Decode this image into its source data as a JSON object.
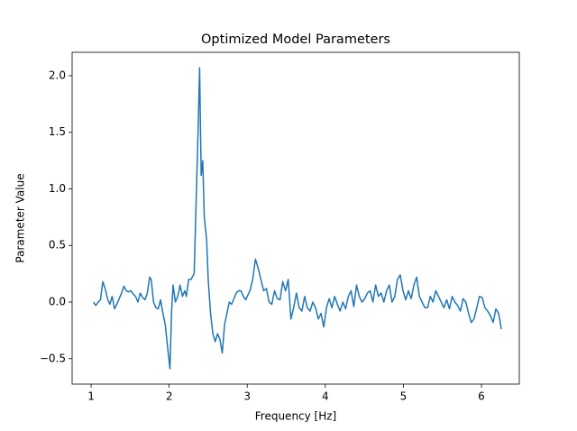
{
  "chart_data": {
    "type": "line",
    "title": "Optimized Model Parameters",
    "x_label": "Frequency [Hz]",
    "y_label": "Parameter Value",
    "color": "#1f77b4",
    "x": [
      1.03,
      1.06,
      1.09,
      1.12,
      1.15,
      1.18,
      1.21,
      1.24,
      1.27,
      1.3,
      1.33,
      1.36,
      1.39,
      1.42,
      1.45,
      1.48,
      1.51,
      1.54,
      1.57,
      1.6,
      1.63,
      1.66,
      1.69,
      1.72,
      1.75,
      1.77,
      1.8,
      1.83,
      1.86,
      1.89,
      1.92,
      1.95,
      1.98,
      2.01,
      2.03,
      2.05,
      2.08,
      2.11,
      2.14,
      2.17,
      2.2,
      2.22,
      2.25,
      2.28,
      2.32,
      2.37,
      2.39,
      2.41,
      2.43,
      2.45,
      2.48,
      2.5,
      2.53,
      2.56,
      2.59,
      2.62,
      2.65,
      2.68,
      2.71,
      2.74,
      2.77,
      2.8,
      2.83,
      2.86,
      2.89,
      2.92,
      2.95,
      2.98,
      3.0,
      3.035,
      3.07,
      3.105,
      3.14,
      3.175,
      3.21,
      3.245,
      3.28,
      3.315,
      3.35,
      3.385,
      3.42,
      3.455,
      3.49,
      3.525,
      3.56,
      3.595,
      3.63,
      3.665,
      3.7,
      3.735,
      3.77,
      3.805,
      3.84,
      3.875,
      3.91,
      3.945,
      3.98,
      4.015,
      4.05,
      4.085,
      4.12,
      4.155,
      4.19,
      4.225,
      4.26,
      4.295,
      4.33,
      4.365,
      4.4,
      4.435,
      4.47,
      4.505,
      4.54,
      4.575,
      4.61,
      4.645,
      4.68,
      4.715,
      4.75,
      4.785,
      4.82,
      4.855,
      4.89,
      4.925,
      4.96,
      4.995,
      5.03,
      5.065,
      5.1,
      5.135,
      5.17,
      5.205,
      5.24,
      5.275,
      5.31,
      5.345,
      5.38,
      5.415,
      5.45,
      5.485,
      5.52,
      5.555,
      5.59,
      5.625,
      5.66,
      5.695,
      5.73,
      5.765,
      5.8,
      5.835,
      5.87,
      5.905,
      5.94,
      5.975,
      6.01,
      6.045,
      6.08,
      6.115,
      6.15,
      6.185,
      6.22,
      6.255
    ],
    "values": [
      0.0,
      -0.03,
      0.0,
      0.02,
      0.18,
      0.12,
      0.03,
      -0.02,
      0.05,
      -0.06,
      -0.02,
      0.03,
      0.08,
      0.14,
      0.1,
      0.09,
      0.1,
      0.07,
      0.05,
      0.0,
      0.08,
      0.04,
      0.02,
      0.08,
      0.22,
      0.2,
      0.0,
      -0.05,
      -0.06,
      0.02,
      -0.1,
      -0.2,
      -0.4,
      -0.59,
      -0.1,
      0.15,
      0.0,
      0.05,
      0.15,
      0.05,
      0.1,
      0.05,
      0.2,
      0.2,
      0.25,
      1.5,
      2.07,
      1.12,
      1.25,
      0.75,
      0.55,
      0.2,
      -0.1,
      -0.28,
      -0.35,
      -0.28,
      -0.33,
      -0.45,
      -0.2,
      -0.1,
      0.0,
      -0.02,
      0.03,
      0.08,
      0.1,
      0.1,
      0.05,
      0.02,
      0.05,
      0.1,
      0.2,
      0.38,
      0.3,
      0.2,
      0.1,
      0.12,
      0.0,
      -0.02,
      0.1,
      0.03,
      0.02,
      0.18,
      0.1,
      0.2,
      -0.15,
      -0.05,
      0.08,
      -0.05,
      -0.08,
      0.05,
      -0.05,
      -0.08,
      0.0,
      -0.05,
      -0.15,
      -0.1,
      -0.22,
      -0.05,
      0.03,
      -0.05,
      0.05,
      -0.02,
      -0.08,
      0.0,
      -0.06,
      0.05,
      0.1,
      -0.04,
      0.15,
      0.05,
      0.0,
      0.03,
      0.08,
      0.1,
      0.0,
      0.15,
      0.05,
      0.08,
      0.0,
      0.1,
      0.15,
      0.0,
      0.05,
      0.2,
      0.24,
      0.1,
      0.02,
      0.1,
      0.03,
      0.15,
      0.22,
      0.05,
      0.0,
      -0.05,
      -0.05,
      0.05,
      0.0,
      0.1,
      0.05,
      0.0,
      -0.05,
      0.02,
      -0.06,
      0.05,
      0.0,
      -0.03,
      -0.08,
      0.03,
      0.0,
      -0.1,
      -0.18,
      -0.15,
      -0.05,
      0.05,
      0.04,
      -0.05,
      -0.08,
      -0.12,
      -0.18,
      -0.06,
      -0.1,
      -0.24
    ],
    "xlim": [
      0.757,
      6.485
    ],
    "ylim": [
      -0.725,
      2.207
    ],
    "xticks": [
      1,
      2,
      3,
      4,
      5,
      6
    ],
    "yticks": [
      {
        "value": -0.5,
        "label": "−0.5"
      },
      {
        "value": 0,
        "label": "0.0"
      },
      {
        "value": 0.5,
        "label": "0.5"
      },
      {
        "value": 1,
        "label": "1.0"
      },
      {
        "value": 1.5,
        "label": "1.5"
      },
      {
        "value": 2,
        "label": "2.0"
      }
    ]
  }
}
